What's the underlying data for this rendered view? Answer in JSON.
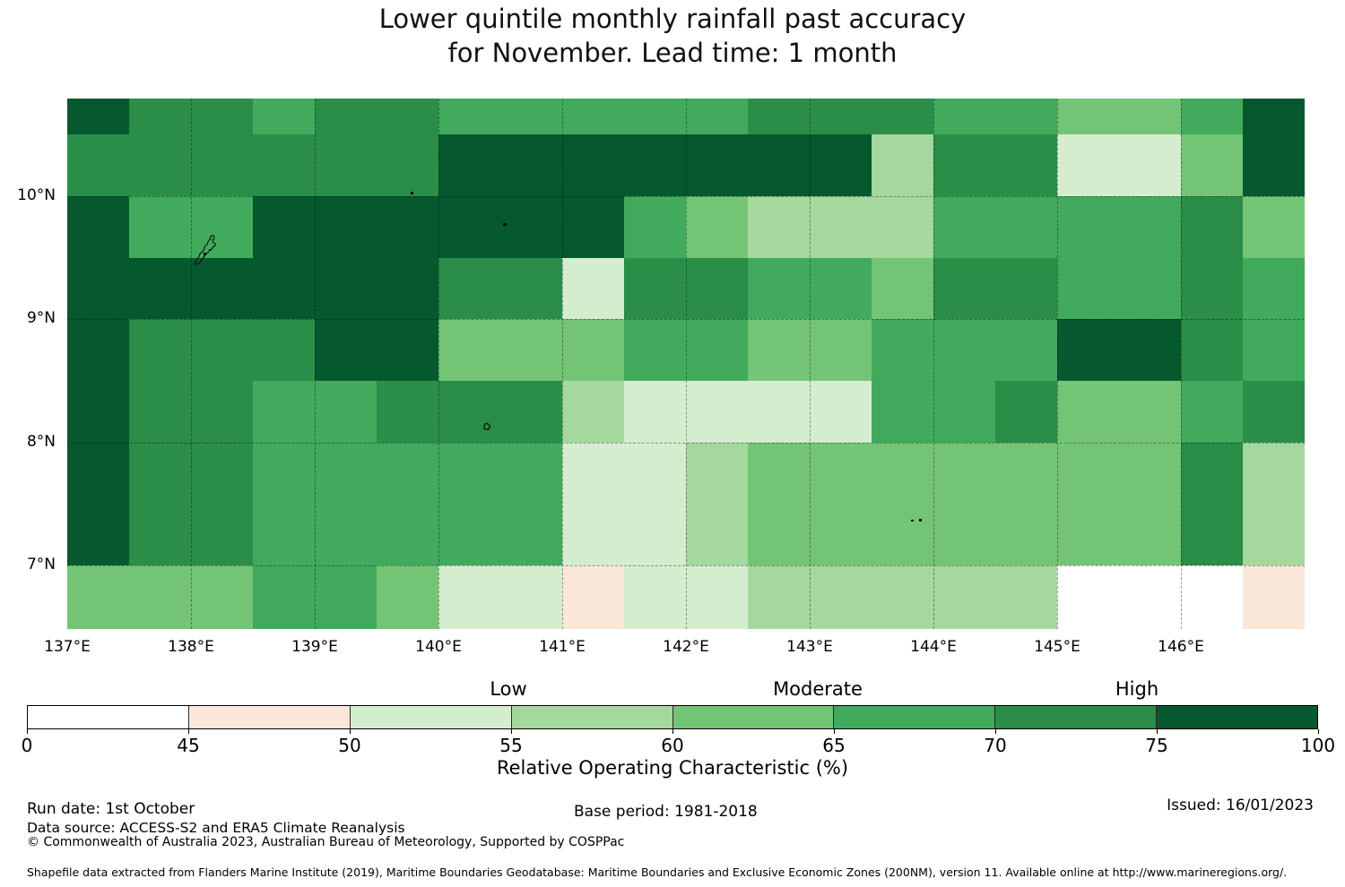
{
  "title": {
    "line1": "Lower quintile monthly rainfall past accuracy",
    "line2": "for November. Lead time: 1 month"
  },
  "map": {
    "lat_labels": [
      "10°N",
      "9°N",
      "8°N",
      "7°N"
    ],
    "lon_labels": [
      "137°E",
      "138°E",
      "139°E",
      "140°E",
      "141°E",
      "142°E",
      "143°E",
      "144°E",
      "145°E",
      "146°E"
    ]
  },
  "legend": {
    "category_labels": [
      "Low",
      "Moderate",
      "High"
    ],
    "tick_labels": [
      "0",
      "45",
      "50",
      "55",
      "60",
      "65",
      "70",
      "75",
      "100"
    ],
    "axis_label": "Relative Operating Characteristic (%)",
    "segment_colors": [
      "#ffffff",
      "#fbe7d9",
      "#d5edcf",
      "#a4d89d",
      "#74c476",
      "#41aa5c",
      "#2a8d48",
      "#06582e"
    ]
  },
  "footer": {
    "run_date": "Run date: 1st October",
    "data_source": "Data source: ACCESS-S2 and ERA5 Climate Reanalysis",
    "copyright": "© Commonwealth of Australia 2023, Australian Bureau of Meteorology, Supported by COSPPac",
    "base_period": "Base period: 1981-2018",
    "issued": "Issued: 16/01/2023",
    "shapefile_note": "Shapefile data extracted from Flanders Marine Institute (2019), Maritime Boundaries Geodatabase: Maritime Boundaries and Exclusive Economic Zones (200NM), version 11. Available online at http://www.marineregions.org/."
  },
  "chart_data": {
    "type": "heatmap",
    "title": "Lower quintile monthly rainfall past accuracy for November. Lead time: 1 month",
    "value_label": "Relative Operating Characteristic (%)",
    "x_tick_labels": [
      "137°E",
      "138°E",
      "139°E",
      "140°E",
      "141°E",
      "142°E",
      "143°E",
      "144°E",
      "145°E",
      "146°E"
    ],
    "y_tick_labels": [
      "10°N",
      "9°N",
      "8°N",
      "7°N"
    ],
    "legend_categories": {
      "50-60": "Low",
      "60-70": "Moderate",
      "70-100": "High"
    },
    "bin_ranges": [
      "0-45",
      "45-50",
      "50-55",
      "55-60",
      "60-65",
      "65-70",
      "70-75",
      "75-100"
    ],
    "col_lon_edges": [
      137.0,
      137.5,
      138.0,
      138.5,
      139.0,
      139.5,
      140.0,
      140.5,
      141.0,
      141.5,
      142.0,
      142.5,
      143.0,
      143.5,
      144.0,
      144.5,
      145.0,
      145.5,
      146.0,
      146.5,
      147.0
    ],
    "row_lat_edges": [
      10.8,
      10.5,
      10.0,
      9.5,
      9.0,
      8.5,
      8.0,
      7.5,
      7.0,
      6.5
    ],
    "grid_bins_north_to_south": [
      [
        7,
        6,
        6,
        5,
        6,
        6,
        5,
        5,
        5,
        5,
        5,
        6,
        6,
        6,
        5,
        5,
        4,
        4,
        5,
        7
      ],
      [
        6,
        6,
        6,
        6,
        6,
        6,
        7,
        7,
        7,
        7,
        7,
        7,
        7,
        3,
        6,
        6,
        2,
        2,
        4,
        7
      ],
      [
        7,
        5,
        5,
        7,
        7,
        7,
        7,
        7,
        7,
        5,
        4,
        3,
        3,
        3,
        5,
        5,
        5,
        5,
        6,
        4
      ],
      [
        7,
        7,
        7,
        7,
        7,
        7,
        6,
        6,
        2,
        6,
        6,
        5,
        5,
        4,
        6,
        6,
        5,
        5,
        6,
        5
      ],
      [
        7,
        6,
        6,
        6,
        7,
        7,
        4,
        4,
        4,
        5,
        5,
        4,
        4,
        5,
        5,
        5,
        7,
        7,
        6,
        5
      ],
      [
        7,
        6,
        6,
        5,
        5,
        6,
        6,
        6,
        3,
        2,
        2,
        2,
        2,
        5,
        5,
        6,
        4,
        4,
        5,
        6
      ],
      [
        7,
        6,
        6,
        5,
        5,
        5,
        5,
        5,
        2,
        2,
        3,
        4,
        4,
        4,
        4,
        4,
        4,
        4,
        6,
        3
      ],
      [
        7,
        6,
        6,
        5,
        5,
        5,
        5,
        5,
        2,
        2,
        3,
        4,
        4,
        4,
        4,
        4,
        4,
        4,
        6,
        3
      ],
      [
        4,
        4,
        4,
        5,
        5,
        4,
        2,
        2,
        1,
        2,
        2,
        3,
        3,
        3,
        3,
        3,
        0,
        0,
        0,
        1
      ]
    ]
  }
}
